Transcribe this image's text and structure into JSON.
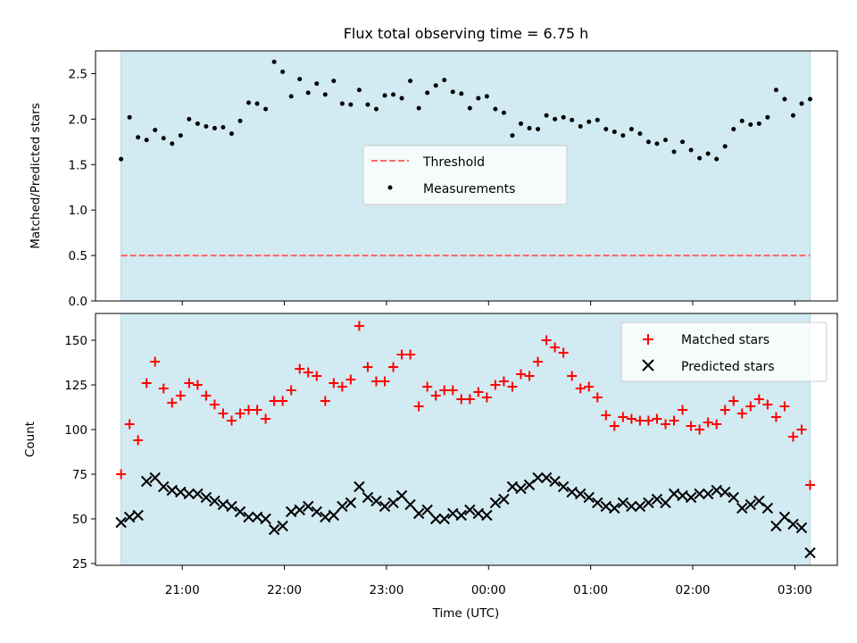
{
  "colors": {
    "observing_band": "#add8e6",
    "threshold": "#ff6666",
    "measurements": "#000000",
    "matched": "#ff0000",
    "predicted": "#000000"
  },
  "chart_data": [
    {
      "type": "scatter",
      "title": "Flux total observing time = 6.75 h",
      "xlabel": "",
      "ylabel": "Matched/Predicted stars",
      "xlim": [
        "2023-01-01T20:09",
        "2023-01-02T03:25"
      ],
      "ylim": [
        0,
        2.75
      ],
      "yticks": [
        "0.0",
        "0.5",
        "1.0",
        "1.5",
        "2.0",
        "2.5"
      ],
      "grid": false,
      "legend": "center",
      "shaded_span": [
        "2023-01-01T20:24",
        "2023-01-02T03:09"
      ],
      "threshold": {
        "name": "Threshold",
        "value": 0.5,
        "style": "dashed"
      },
      "series": [
        {
          "name": "Measurements",
          "x": [
            "2023-01-01T20:24",
            "2023-01-01T20:29",
            "2023-01-01T20:34",
            "2023-01-01T20:39",
            "2023-01-01T20:44",
            "2023-01-01T20:49",
            "2023-01-01T20:54",
            "2023-01-01T20:59",
            "2023-01-01T21:04",
            "2023-01-01T21:09",
            "2023-01-01T21:14",
            "2023-01-01T21:19",
            "2023-01-01T21:24",
            "2023-01-01T21:29",
            "2023-01-01T21:34",
            "2023-01-01T21:39",
            "2023-01-01T21:44",
            "2023-01-01T21:49",
            "2023-01-01T21:54",
            "2023-01-01T21:59",
            "2023-01-01T22:04",
            "2023-01-01T22:09",
            "2023-01-01T22:14",
            "2023-01-01T22:19",
            "2023-01-01T22:24",
            "2023-01-01T22:29",
            "2023-01-01T22:34",
            "2023-01-01T22:39",
            "2023-01-01T22:44",
            "2023-01-01T22:49",
            "2023-01-01T22:54",
            "2023-01-01T22:59",
            "2023-01-01T23:04",
            "2023-01-01T23:09",
            "2023-01-01T23:14",
            "2023-01-01T23:19",
            "2023-01-01T23:24",
            "2023-01-01T23:29",
            "2023-01-01T23:34",
            "2023-01-01T23:39",
            "2023-01-01T23:44",
            "2023-01-01T23:49",
            "2023-01-01T23:54",
            "2023-01-01T23:59",
            "2023-01-02T00:04",
            "2023-01-02T00:09",
            "2023-01-02T00:14",
            "2023-01-02T00:19",
            "2023-01-02T00:24",
            "2023-01-02T00:29",
            "2023-01-02T00:34",
            "2023-01-02T00:39",
            "2023-01-02T00:44",
            "2023-01-02T00:49",
            "2023-01-02T00:54",
            "2023-01-02T00:59",
            "2023-01-02T01:04",
            "2023-01-02T01:09",
            "2023-01-02T01:14",
            "2023-01-02T01:19",
            "2023-01-02T01:24",
            "2023-01-02T01:29",
            "2023-01-02T01:34",
            "2023-01-02T01:39",
            "2023-01-02T01:44",
            "2023-01-02T01:49",
            "2023-01-02T01:54",
            "2023-01-02T01:59",
            "2023-01-02T02:04",
            "2023-01-02T02:09",
            "2023-01-02T02:14",
            "2023-01-02T02:19",
            "2023-01-02T02:24",
            "2023-01-02T02:29",
            "2023-01-02T02:34",
            "2023-01-02T02:39",
            "2023-01-02T02:44",
            "2023-01-02T02:49",
            "2023-01-02T02:54",
            "2023-01-02T02:59",
            "2023-01-02T03:04",
            "2023-01-02T03:09"
          ],
          "y": [
            1.56,
            2.02,
            1.8,
            1.77,
            1.88,
            1.79,
            1.73,
            1.82,
            2.0,
            1.95,
            1.92,
            1.9,
            1.91,
            1.84,
            1.98,
            2.18,
            2.17,
            2.11,
            2.63,
            2.52,
            2.25,
            2.44,
            2.29,
            2.39,
            2.27,
            2.42,
            2.17,
            2.16,
            2.32,
            2.16,
            2.11,
            2.26,
            2.27,
            2.23,
            2.42,
            2.12,
            2.29,
            2.37,
            2.43,
            2.3,
            2.28,
            2.12,
            2.23,
            2.25,
            2.11,
            2.07,
            1.82,
            1.95,
            1.9,
            1.89,
            2.04,
            2.0,
            2.02,
            1.99,
            1.92,
            1.97,
            1.99,
            1.89,
            1.86,
            1.82,
            1.89,
            1.84,
            1.75,
            1.73,
            1.77,
            1.64,
            1.75,
            1.66,
            1.57,
            1.62,
            1.56,
            1.7,
            1.89,
            1.98,
            1.94,
            1.95,
            2.02,
            2.32,
            2.22,
            2.04,
            2.17,
            2.22
          ]
        }
      ]
    },
    {
      "type": "scatter",
      "title": "",
      "xlabel": "Time (UTC)",
      "ylabel": "Count",
      "xlim": [
        "2023-01-01T20:09",
        "2023-01-02T03:25"
      ],
      "ylim": [
        24,
        165
      ],
      "yticks": [
        "25",
        "50",
        "75",
        "100",
        "125",
        "150"
      ],
      "xticks": [
        {
          "t": "2023-01-01T21:00",
          "label": "21:00"
        },
        {
          "t": "2023-01-01T22:00",
          "label": "22:00"
        },
        {
          "t": "2023-01-01T23:00",
          "label": "23:00"
        },
        {
          "t": "2023-01-02T00:00",
          "label": "00:00"
        },
        {
          "t": "2023-01-02T01:00",
          "label": "01:00"
        },
        {
          "t": "2023-01-02T02:00",
          "label": "02:00"
        },
        {
          "t": "2023-01-02T03:00",
          "label": "03:00"
        }
      ],
      "grid": false,
      "legend": "top-right",
      "shaded_span": [
        "2023-01-01T20:24",
        "2023-01-02T03:09"
      ],
      "series": [
        {
          "name": "Matched stars",
          "marker": "+",
          "x": [
            "2023-01-01T20:24",
            "2023-01-01T20:29",
            "2023-01-01T20:34",
            "2023-01-01T20:39",
            "2023-01-01T20:44",
            "2023-01-01T20:49",
            "2023-01-01T20:54",
            "2023-01-01T20:59",
            "2023-01-01T21:04",
            "2023-01-01T21:09",
            "2023-01-01T21:14",
            "2023-01-01T21:19",
            "2023-01-01T21:24",
            "2023-01-01T21:29",
            "2023-01-01T21:34",
            "2023-01-01T21:39",
            "2023-01-01T21:44",
            "2023-01-01T21:49",
            "2023-01-01T21:54",
            "2023-01-01T21:59",
            "2023-01-01T22:04",
            "2023-01-01T22:09",
            "2023-01-01T22:14",
            "2023-01-01T22:19",
            "2023-01-01T22:24",
            "2023-01-01T22:29",
            "2023-01-01T22:34",
            "2023-01-01T22:39",
            "2023-01-01T22:44",
            "2023-01-01T22:49",
            "2023-01-01T22:54",
            "2023-01-01T22:59",
            "2023-01-01T23:04",
            "2023-01-01T23:09",
            "2023-01-01T23:14",
            "2023-01-01T23:19",
            "2023-01-01T23:24",
            "2023-01-01T23:29",
            "2023-01-01T23:34",
            "2023-01-01T23:39",
            "2023-01-01T23:44",
            "2023-01-01T23:49",
            "2023-01-01T23:54",
            "2023-01-01T23:59",
            "2023-01-02T00:04",
            "2023-01-02T00:09",
            "2023-01-02T00:14",
            "2023-01-02T00:19",
            "2023-01-02T00:24",
            "2023-01-02T00:29",
            "2023-01-02T00:34",
            "2023-01-02T00:39",
            "2023-01-02T00:44",
            "2023-01-02T00:49",
            "2023-01-02T00:54",
            "2023-01-02T00:59",
            "2023-01-02T01:04",
            "2023-01-02T01:09",
            "2023-01-02T01:14",
            "2023-01-02T01:19",
            "2023-01-02T01:24",
            "2023-01-02T01:29",
            "2023-01-02T01:34",
            "2023-01-02T01:39",
            "2023-01-02T01:44",
            "2023-01-02T01:49",
            "2023-01-02T01:54",
            "2023-01-02T01:59",
            "2023-01-02T02:04",
            "2023-01-02T02:09",
            "2023-01-02T02:14",
            "2023-01-02T02:19",
            "2023-01-02T02:24",
            "2023-01-02T02:29",
            "2023-01-02T02:34",
            "2023-01-02T02:39",
            "2023-01-02T02:44",
            "2023-01-02T02:49",
            "2023-01-02T02:54",
            "2023-01-02T02:59",
            "2023-01-02T03:04",
            "2023-01-02T03:09"
          ],
          "y": [
            75,
            103,
            94,
            126,
            138,
            123,
            115,
            119,
            126,
            125,
            119,
            114,
            109,
            105,
            109,
            111,
            111,
            106,
            116,
            116,
            122,
            134,
            132,
            130,
            116,
            126,
            124,
            128,
            158,
            135,
            127,
            127,
            135,
            142,
            142,
            113,
            124,
            119,
            122,
            122,
            117,
            117,
            121,
            118,
            125,
            127,
            124,
            131,
            130,
            138,
            150,
            146,
            143,
            130,
            123,
            124,
            118,
            108,
            102,
            107,
            106,
            105,
            105,
            106,
            103,
            105,
            111,
            102,
            100,
            104,
            103,
            111,
            116,
            109,
            113,
            117,
            114,
            107,
            113,
            96,
            100,
            69
          ]
        },
        {
          "name": "Predicted stars",
          "marker": "x",
          "x": [
            "2023-01-01T20:24",
            "2023-01-01T20:29",
            "2023-01-01T20:34",
            "2023-01-01T20:39",
            "2023-01-01T20:44",
            "2023-01-01T20:49",
            "2023-01-01T20:54",
            "2023-01-01T20:59",
            "2023-01-01T21:04",
            "2023-01-01T21:09",
            "2023-01-01T21:14",
            "2023-01-01T21:19",
            "2023-01-01T21:24",
            "2023-01-01T21:29",
            "2023-01-01T21:34",
            "2023-01-01T21:39",
            "2023-01-01T21:44",
            "2023-01-01T21:49",
            "2023-01-01T21:54",
            "2023-01-01T21:59",
            "2023-01-01T22:04",
            "2023-01-01T22:09",
            "2023-01-01T22:14",
            "2023-01-01T22:19",
            "2023-01-01T22:24",
            "2023-01-01T22:29",
            "2023-01-01T22:34",
            "2023-01-01T22:39",
            "2023-01-01T22:44",
            "2023-01-01T22:49",
            "2023-01-01T22:54",
            "2023-01-01T22:59",
            "2023-01-01T23:04",
            "2023-01-01T23:09",
            "2023-01-01T23:14",
            "2023-01-01T23:19",
            "2023-01-01T23:24",
            "2023-01-01T23:29",
            "2023-01-01T23:34",
            "2023-01-01T23:39",
            "2023-01-01T23:44",
            "2023-01-01T23:49",
            "2023-01-01T23:54",
            "2023-01-01T23:59",
            "2023-01-02T00:04",
            "2023-01-02T00:09",
            "2023-01-02T00:14",
            "2023-01-02T00:19",
            "2023-01-02T00:24",
            "2023-01-02T00:29",
            "2023-01-02T00:34",
            "2023-01-02T00:39",
            "2023-01-02T00:44",
            "2023-01-02T00:49",
            "2023-01-02T00:54",
            "2023-01-02T00:59",
            "2023-01-02T01:04",
            "2023-01-02T01:09",
            "2023-01-02T01:14",
            "2023-01-02T01:19",
            "2023-01-02T01:24",
            "2023-01-02T01:29",
            "2023-01-02T01:34",
            "2023-01-02T01:39",
            "2023-01-02T01:44",
            "2023-01-02T01:49",
            "2023-01-02T01:54",
            "2023-01-02T01:59",
            "2023-01-02T02:04",
            "2023-01-02T02:09",
            "2023-01-02T02:14",
            "2023-01-02T02:19",
            "2023-01-02T02:24",
            "2023-01-02T02:29",
            "2023-01-02T02:34",
            "2023-01-02T02:39",
            "2023-01-02T02:44",
            "2023-01-02T02:49",
            "2023-01-02T02:54",
            "2023-01-02T02:59",
            "2023-01-02T03:04",
            "2023-01-02T03:09"
          ],
          "y": [
            48,
            51,
            52,
            71,
            73,
            68,
            66,
            65,
            64,
            64,
            62,
            60,
            58,
            57,
            54,
            51,
            51,
            50,
            44,
            46,
            54,
            55,
            57,
            54,
            51,
            52,
            57,
            59,
            68,
            62,
            60,
            57,
            59,
            63,
            58,
            53,
            55,
            50,
            50,
            53,
            52,
            55,
            53,
            52,
            59,
            61,
            68,
            67,
            69,
            73,
            73,
            71,
            68,
            65,
            64,
            62,
            59,
            57,
            56,
            59,
            57,
            57,
            59,
            61,
            59,
            64,
            63,
            62,
            64,
            64,
            66,
            65,
            62,
            56,
            58,
            60,
            56,
            46,
            51,
            47,
            45,
            31
          ]
        }
      ]
    }
  ]
}
